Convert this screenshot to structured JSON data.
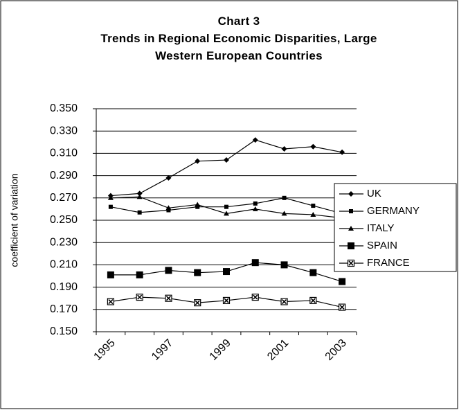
{
  "chart_data": {
    "type": "line",
    "title": "Chart 3",
    "subtitle": "Trends in Regional Economic Disparities, Large Western European Countries",
    "y_label": "coefficient of variation",
    "categories": [
      "1995",
      null,
      "1997",
      null,
      "1999",
      null,
      "2001",
      null,
      "2003"
    ],
    "ylim": [
      0.15,
      0.35
    ],
    "yticks": [
      {
        "value": 0.15,
        "label": "0.150"
      },
      {
        "value": 0.17,
        "label": "0.170"
      },
      {
        "value": 0.19,
        "label": "0.190"
      },
      {
        "value": 0.21,
        "label": "0.210"
      },
      {
        "value": 0.23,
        "label": "0.230"
      },
      {
        "value": 0.25,
        "label": "0.250"
      },
      {
        "value": 0.27,
        "label": "0.270"
      },
      {
        "value": 0.29,
        "label": "0.290"
      },
      {
        "value": 0.31,
        "label": "0.310"
      },
      {
        "value": 0.33,
        "label": "0.330"
      },
      {
        "value": 0.35,
        "label": "0.350"
      }
    ],
    "grid": true,
    "legend": "right",
    "series": [
      {
        "name": "UK",
        "color": "#000000",
        "marker": "diamond",
        "values": [
          0.272,
          0.274,
          0.288,
          0.303,
          0.304,
          0.322,
          0.314,
          0.316,
          0.311
        ]
      },
      {
        "name": "GERMANY",
        "color": "#000000",
        "marker": "square",
        "values": [
          0.262,
          0.257,
          0.259,
          0.262,
          0.262,
          0.265,
          0.27,
          0.263,
          0.256
        ]
      },
      {
        "name": "ITALY",
        "color": "#000000",
        "marker": "triangle",
        "values": [
          0.27,
          0.271,
          0.261,
          0.264,
          0.256,
          0.26,
          0.256,
          0.255,
          0.252
        ]
      },
      {
        "name": "SPAIN",
        "color": "#000000",
        "marker": "big-square",
        "values": [
          0.201,
          0.201,
          0.205,
          0.203,
          0.204,
          0.212,
          0.21,
          0.203,
          0.195
        ]
      },
      {
        "name": "FRANCE",
        "color": "#000000",
        "marker": "x-box",
        "values": [
          0.177,
          0.181,
          0.18,
          0.176,
          0.178,
          0.181,
          0.177,
          0.178,
          0.172
        ]
      }
    ]
  }
}
